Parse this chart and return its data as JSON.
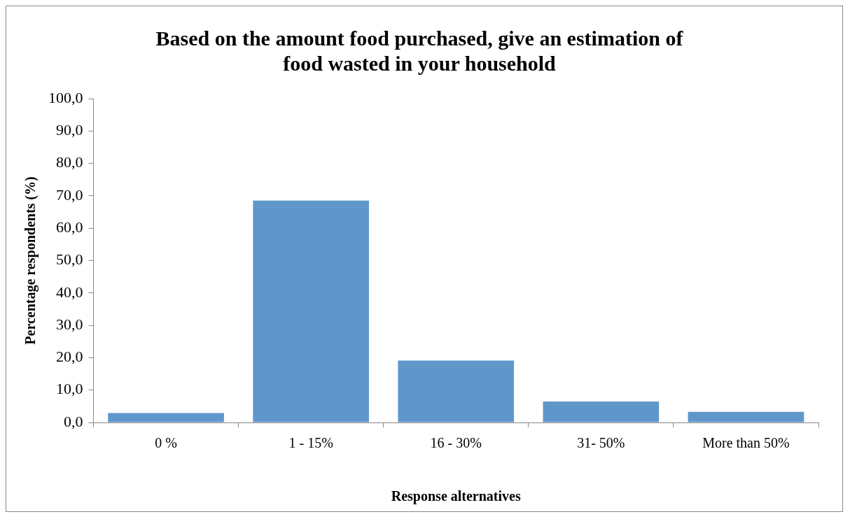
{
  "chart_data": {
    "type": "bar",
    "title": "Based on the amount food purchased, give an estimation of food wasted in your household",
    "xlabel": "Response alternatives",
    "ylabel": "Percentage respondents (%)",
    "categories": [
      "0 %",
      "1 - 15%",
      "16 - 30%",
      "31- 50%",
      "More than 50%"
    ],
    "values": [
      2.9,
      68.5,
      19.1,
      6.5,
      3.3
    ],
    "color": "#6097cb",
    "ylim": [
      0,
      100
    ],
    "yticks": [
      {
        "value": 0,
        "label": "0,0"
      },
      {
        "value": 10,
        "label": "10,0"
      },
      {
        "value": 20,
        "label": "20,0"
      },
      {
        "value": 30,
        "label": "30,0"
      },
      {
        "value": 40,
        "label": "40,0"
      },
      {
        "value": 50,
        "label": "50,0"
      },
      {
        "value": 60,
        "label": "60,0"
      },
      {
        "value": 70,
        "label": "70,0"
      },
      {
        "value": 80,
        "label": "80,0"
      },
      {
        "value": 90,
        "label": "90,0"
      },
      {
        "value": 100,
        "label": "100,0"
      }
    ],
    "grid": false,
    "legend": false
  }
}
